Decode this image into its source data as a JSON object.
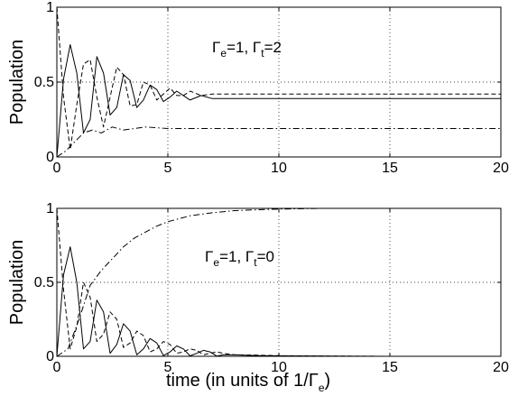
{
  "chart_data": [
    {
      "type": "line",
      "ylabel": "Population",
      "xlim": [
        0,
        20
      ],
      "ylim": [
        0,
        1
      ],
      "xticks": [
        "0",
        "5",
        "10",
        "15",
        "20"
      ],
      "yticks": [
        "0",
        "0.5",
        "1"
      ],
      "grid": "dotted",
      "annotation": {
        "g1": "Γ",
        "s1": "e",
        "m1": "=1, ",
        "g2": "Γ",
        "s2": "t",
        "m2": "=2"
      },
      "steady_state": {
        "solid": 0.39,
        "dashed": 0.42,
        "dashdot": 0.19
      },
      "series": [
        {
          "style": "solid",
          "x": [
            0,
            0.3,
            0.6,
            0.9,
            1.2,
            1.5,
            1.8,
            2.1,
            2.4,
            2.7,
            3.0,
            3.3,
            3.6,
            3.9,
            4.2,
            4.5,
            4.8,
            5.1,
            5.4,
            5.7,
            6,
            6.5,
            7,
            8,
            10,
            12,
            15,
            20
          ],
          "y": [
            0,
            0.52,
            0.75,
            0.56,
            0.16,
            0.25,
            0.67,
            0.56,
            0.28,
            0.33,
            0.55,
            0.51,
            0.33,
            0.38,
            0.48,
            0.45,
            0.37,
            0.4,
            0.44,
            0.41,
            0.38,
            0.41,
            0.39,
            0.39,
            0.39,
            0.39,
            0.39,
            0.39
          ]
        },
        {
          "style": "dashed",
          "x": [
            0,
            0.3,
            0.6,
            0.9,
            1.2,
            1.5,
            1.8,
            2.1,
            2.4,
            2.7,
            3.0,
            3.3,
            3.6,
            3.9,
            4.2,
            4.5,
            4.8,
            5.1,
            5.4,
            5.7,
            6,
            6.5,
            7,
            8,
            10,
            12,
            15,
            20
          ],
          "y": [
            1,
            0.4,
            0.05,
            0.35,
            0.62,
            0.65,
            0.4,
            0.2,
            0.4,
            0.6,
            0.55,
            0.34,
            0.35,
            0.5,
            0.48,
            0.38,
            0.42,
            0.46,
            0.41,
            0.41,
            0.44,
            0.41,
            0.42,
            0.42,
            0.42,
            0.42,
            0.42,
            0.42
          ]
        },
        {
          "style": "dashdot",
          "x": [
            0,
            0.4,
            0.8,
            1.2,
            1.6,
            2.0,
            2.5,
            3,
            4,
            5,
            6,
            8,
            10,
            15,
            20
          ],
          "y": [
            0,
            0.04,
            0.1,
            0.16,
            0.18,
            0.16,
            0.2,
            0.18,
            0.2,
            0.19,
            0.19,
            0.19,
            0.19,
            0.19,
            0.19
          ]
        }
      ]
    },
    {
      "type": "line",
      "ylabel": "Population",
      "xlabel": {
        "main": "time (in units of 1/",
        "g": "Γ",
        "s": "e",
        "close": ")"
      },
      "xlim": [
        0,
        20
      ],
      "ylim": [
        0,
        1
      ],
      "xticks": [
        "0",
        "5",
        "10",
        "15",
        "20"
      ],
      "yticks": [
        "0",
        "0.5",
        "1"
      ],
      "grid": "dotted",
      "annotation": {
        "g1": "Γ",
        "s1": "e",
        "m1": "=1, ",
        "g2": "Γ",
        "s2": "t",
        "m2": "=0"
      },
      "series": [
        {
          "style": "solid",
          "x": [
            0,
            0.3,
            0.6,
            0.9,
            1.2,
            1.5,
            1.8,
            2.1,
            2.4,
            2.7,
            3.0,
            3.3,
            3.6,
            3.9,
            4.2,
            4.5,
            4.8,
            5.1,
            5.4,
            5.7,
            6.0,
            6.3,
            6.6,
            6.9,
            7.2,
            7.5,
            8,
            9,
            10,
            12,
            15,
            20
          ],
          "y": [
            0,
            0.55,
            0.74,
            0.5,
            0.05,
            0.1,
            0.38,
            0.3,
            0.02,
            0.08,
            0.22,
            0.17,
            0.01,
            0.05,
            0.12,
            0.09,
            0.005,
            0.03,
            0.07,
            0.05,
            0.003,
            0.02,
            0.04,
            0.03,
            0.002,
            0.01,
            0.01,
            0.005,
            0.003,
            0.001,
            0,
            0
          ]
        },
        {
          "style": "dashed",
          "x": [
            0,
            0.3,
            0.6,
            0.9,
            1.2,
            1.5,
            1.8,
            2.1,
            2.4,
            2.7,
            3.0,
            3.3,
            3.6,
            3.9,
            4.2,
            4.5,
            4.8,
            5.1,
            5.4,
            5.7,
            6.0,
            6.3,
            6.6,
            6.9,
            7.2,
            7.5,
            8,
            9,
            10,
            12,
            15,
            20
          ],
          "y": [
            1,
            0.45,
            0.05,
            0.2,
            0.5,
            0.4,
            0.1,
            0.15,
            0.3,
            0.25,
            0.06,
            0.09,
            0.17,
            0.14,
            0.03,
            0.05,
            0.1,
            0.08,
            0.02,
            0.03,
            0.05,
            0.04,
            0.01,
            0.02,
            0.03,
            0.02,
            0.01,
            0.008,
            0.004,
            0.002,
            0,
            0
          ]
        },
        {
          "style": "dashdot",
          "x": [
            0,
            0.5,
            1,
            1.5,
            2,
            2.5,
            3,
            3.5,
            4,
            4.5,
            5,
            6,
            7,
            8,
            9,
            10,
            12,
            15,
            20
          ],
          "y": [
            0,
            0.05,
            0.25,
            0.48,
            0.58,
            0.66,
            0.74,
            0.8,
            0.84,
            0.88,
            0.91,
            0.95,
            0.97,
            0.985,
            0.99,
            0.995,
            1,
            1,
            1
          ]
        }
      ]
    }
  ]
}
